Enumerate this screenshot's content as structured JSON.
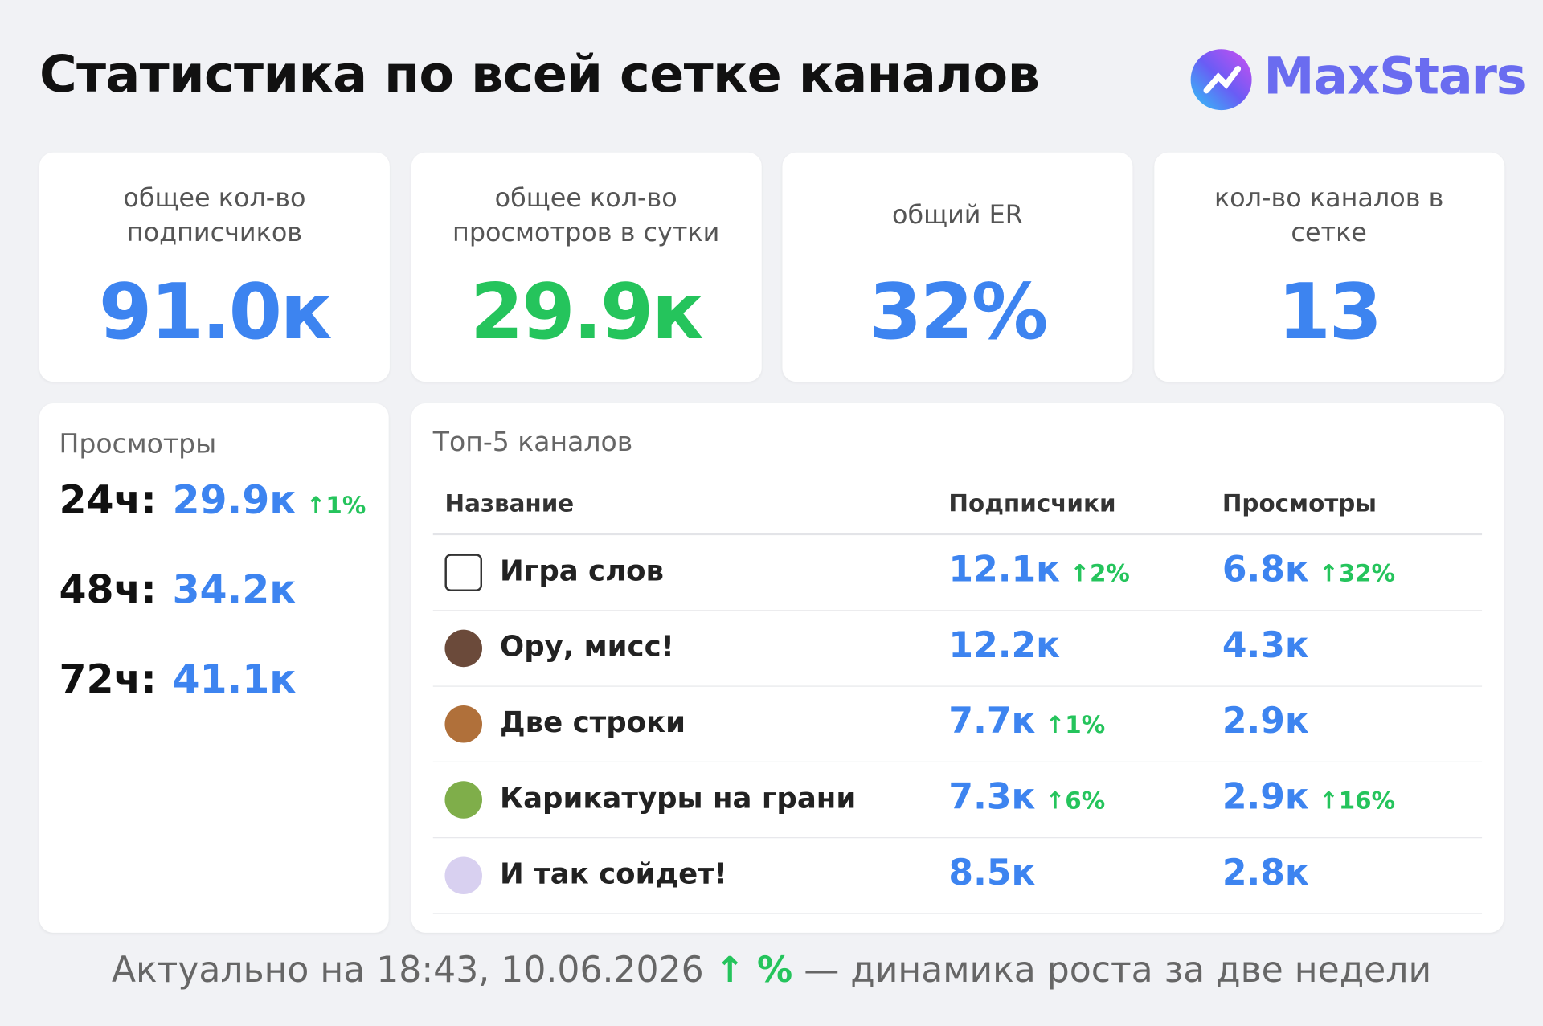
{
  "header": {
    "title": "Статистика по всей сетке каналов",
    "logo": "MaxStars"
  },
  "cards": [
    {
      "label": [
        "общее кол-во",
        "подписчиков"
      ],
      "value": "91.0к",
      "color": "blue"
    },
    {
      "label": [
        "общее кол-во",
        "просмотров в сутки"
      ],
      "value": "29.9к",
      "color": "green"
    },
    {
      "label": [
        "общий ER"
      ],
      "value": "32%",
      "color": "blue"
    },
    {
      "label": [
        "кол-во каналов в",
        "сетке"
      ],
      "value": "13",
      "color": "blue"
    }
  ],
  "views": {
    "title": "Просмотры",
    "rows": [
      {
        "period": "24ч:",
        "value": "29.9к",
        "change": "↑1%"
      },
      {
        "period": "48ч:",
        "value": "34.2к"
      },
      {
        "period": "72ч:",
        "value": "41.1к"
      }
    ]
  },
  "table": {
    "title": "Топ-5 каналов",
    "columns": [
      "Название",
      "Подписчики",
      "Просмотры"
    ],
    "rows": [
      {
        "name": "Игра слов",
        "subs": "12.1к",
        "subs_change": "↑2%",
        "views": "6.8к",
        "views_change": "↑32%"
      },
      {
        "name": "Ору, мисс!",
        "subs": "12.2к",
        "views": "4.3к"
      },
      {
        "name": "Две строки",
        "subs": "7.7к",
        "subs_change": "↑1%",
        "views": "2.9к"
      },
      {
        "name": "Карикатуры на грани",
        "subs": "7.3к",
        "subs_change": "↑6%",
        "views": "2.9к",
        "views_change": "↑16%"
      },
      {
        "name": "И так сойдет!",
        "subs": "8.5к",
        "views": "2.8к"
      }
    ]
  },
  "footer": {
    "date": "Актуально на 18:43, 10.06.2026",
    "legend": "↑ %",
    "note": "— динамика роста за две недели"
  }
}
